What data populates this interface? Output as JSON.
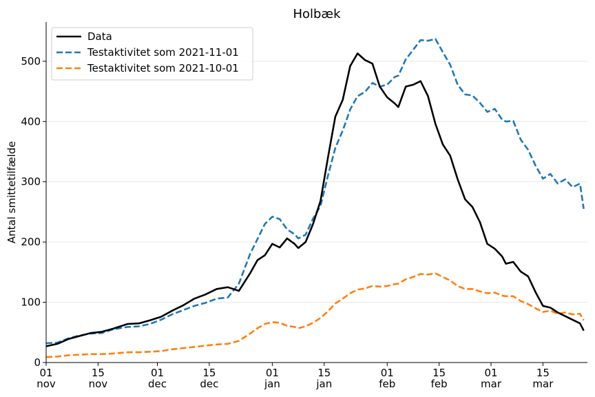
{
  "chart_data": {
    "type": "line",
    "title": "Holbæk",
    "ylabel": "Antal smittetilfælde",
    "xlabel": "",
    "ylim": [
      0,
      565
    ],
    "yticks": [
      0,
      100,
      200,
      300,
      400,
      500
    ],
    "xticks": [
      {
        "date": "2021-11-01",
        "day": "01",
        "month": "nov"
      },
      {
        "date": "2021-11-15",
        "day": "15",
        "month": "nov"
      },
      {
        "date": "2021-12-01",
        "day": "01",
        "month": "dec"
      },
      {
        "date": "2021-12-15",
        "day": "15",
        "month": "dec"
      },
      {
        "date": "2022-01-01",
        "day": "01",
        "month": "jan"
      },
      {
        "date": "2022-01-15",
        "day": "15",
        "month": "jan"
      },
      {
        "date": "2022-02-01",
        "day": "01",
        "month": "feb"
      },
      {
        "date": "2022-02-15",
        "day": "15",
        "month": "feb"
      },
      {
        "date": "2022-03-01",
        "day": "01",
        "month": "mar"
      },
      {
        "date": "2022-03-15",
        "day": "15",
        "month": "mar"
      }
    ],
    "xlim": [
      "2021-11-01",
      "2022-03-27"
    ],
    "grid": "horizontal",
    "legend_position": "top-left",
    "series": [
      {
        "name": "Data",
        "color": "#000000",
        "style": "solid",
        "points": [
          [
            "2021-11-01",
            27
          ],
          [
            "2021-11-04",
            31
          ],
          [
            "2021-11-07",
            39
          ],
          [
            "2021-11-10",
            44
          ],
          [
            "2021-11-13",
            49
          ],
          [
            "2021-11-16",
            51
          ],
          [
            "2021-11-19",
            56
          ],
          [
            "2021-11-23",
            64
          ],
          [
            "2021-11-26",
            65
          ],
          [
            "2021-11-29",
            70
          ],
          [
            "2021-12-02",
            76
          ],
          [
            "2021-12-05",
            86
          ],
          [
            "2021-12-08",
            95
          ],
          [
            "2021-12-11",
            106
          ],
          [
            "2021-12-14",
            113
          ],
          [
            "2021-12-17",
            122
          ],
          [
            "2021-12-20",
            125
          ],
          [
            "2021-12-23",
            119
          ],
          [
            "2021-12-26",
            148
          ],
          [
            "2021-12-28",
            170
          ],
          [
            "2021-12-30",
            178
          ],
          [
            "2022-01-01",
            197
          ],
          [
            "2022-01-03",
            191
          ],
          [
            "2022-01-05",
            206
          ],
          [
            "2022-01-07",
            197
          ],
          [
            "2022-01-08",
            190
          ],
          [
            "2022-01-10",
            200
          ],
          [
            "2022-01-12",
            230
          ],
          [
            "2022-01-14",
            268
          ],
          [
            "2022-01-16",
            340
          ],
          [
            "2022-01-18",
            408
          ],
          [
            "2022-01-20",
            436
          ],
          [
            "2022-01-22",
            492
          ],
          [
            "2022-01-24",
            513
          ],
          [
            "2022-01-26",
            502
          ],
          [
            "2022-01-28",
            496
          ],
          [
            "2022-01-30",
            458
          ],
          [
            "2022-02-01",
            440
          ],
          [
            "2022-02-03",
            430
          ],
          [
            "2022-02-04",
            424
          ],
          [
            "2022-02-06",
            458
          ],
          [
            "2022-02-08",
            461
          ],
          [
            "2022-02-10",
            467
          ],
          [
            "2022-02-12",
            442
          ],
          [
            "2022-02-14",
            396
          ],
          [
            "2022-02-16",
            362
          ],
          [
            "2022-02-18",
            343
          ],
          [
            "2022-02-20",
            304
          ],
          [
            "2022-02-22",
            271
          ],
          [
            "2022-02-24",
            258
          ],
          [
            "2022-02-26",
            233
          ],
          [
            "2022-02-28",
            197
          ],
          [
            "2022-03-02",
            189
          ],
          [
            "2022-03-04",
            176
          ],
          [
            "2022-03-05",
            164
          ],
          [
            "2022-03-07",
            167
          ],
          [
            "2022-03-09",
            151
          ],
          [
            "2022-03-11",
            143
          ],
          [
            "2022-03-13",
            117
          ],
          [
            "2022-03-15",
            94
          ],
          [
            "2022-03-17",
            91
          ],
          [
            "2022-03-19",
            83
          ],
          [
            "2022-03-21",
            77
          ],
          [
            "2022-03-23",
            71
          ],
          [
            "2022-03-25",
            65
          ],
          [
            "2022-03-26",
            53
          ]
        ]
      },
      {
        "name": "Testaktivitet som 2021-11-01",
        "color": "#1f77b4",
        "style": "dashed",
        "points": [
          [
            "2021-11-01",
            32
          ],
          [
            "2021-11-04",
            33
          ],
          [
            "2021-11-07",
            40
          ],
          [
            "2021-11-10",
            45
          ],
          [
            "2021-11-13",
            48
          ],
          [
            "2021-11-16",
            49
          ],
          [
            "2021-11-19",
            55
          ],
          [
            "2021-11-23",
            59
          ],
          [
            "2021-11-26",
            60
          ],
          [
            "2021-11-29",
            64
          ],
          [
            "2021-12-02",
            71
          ],
          [
            "2021-12-05",
            80
          ],
          [
            "2021-12-08",
            87
          ],
          [
            "2021-12-11",
            94
          ],
          [
            "2021-12-14",
            99
          ],
          [
            "2021-12-17",
            106
          ],
          [
            "2021-12-20",
            108
          ],
          [
            "2021-12-23",
            131
          ],
          [
            "2021-12-26",
            180
          ],
          [
            "2021-12-28",
            205
          ],
          [
            "2021-12-30",
            230
          ],
          [
            "2022-01-01",
            242
          ],
          [
            "2022-01-03",
            238
          ],
          [
            "2022-01-05",
            221
          ],
          [
            "2022-01-07",
            213
          ],
          [
            "2022-01-08",
            206
          ],
          [
            "2022-01-10",
            212
          ],
          [
            "2022-01-12",
            239
          ],
          [
            "2022-01-14",
            260
          ],
          [
            "2022-01-16",
            310
          ],
          [
            "2022-01-18",
            356
          ],
          [
            "2022-01-20",
            385
          ],
          [
            "2022-01-22",
            420
          ],
          [
            "2022-01-24",
            442
          ],
          [
            "2022-01-26",
            449
          ],
          [
            "2022-01-28",
            464
          ],
          [
            "2022-01-30",
            458
          ],
          [
            "2022-02-01",
            461
          ],
          [
            "2022-02-03",
            474
          ],
          [
            "2022-02-04",
            476
          ],
          [
            "2022-02-06",
            503
          ],
          [
            "2022-02-08",
            519
          ],
          [
            "2022-02-10",
            535
          ],
          [
            "2022-02-12",
            534
          ],
          [
            "2022-02-14",
            537
          ],
          [
            "2022-02-16",
            515
          ],
          [
            "2022-02-18",
            494
          ],
          [
            "2022-02-20",
            461
          ],
          [
            "2022-02-22",
            445
          ],
          [
            "2022-02-24",
            443
          ],
          [
            "2022-02-26",
            431
          ],
          [
            "2022-02-28",
            416
          ],
          [
            "2022-03-02",
            421
          ],
          [
            "2022-03-04",
            403
          ],
          [
            "2022-03-05",
            400
          ],
          [
            "2022-03-07",
            401
          ],
          [
            "2022-03-09",
            370
          ],
          [
            "2022-03-11",
            353
          ],
          [
            "2022-03-13",
            327
          ],
          [
            "2022-03-15",
            305
          ],
          [
            "2022-03-17",
            313
          ],
          [
            "2022-03-19",
            297
          ],
          [
            "2022-03-21",
            304
          ],
          [
            "2022-03-23",
            291
          ],
          [
            "2022-03-25",
            297
          ],
          [
            "2022-03-26",
            255
          ]
        ]
      },
      {
        "name": "Testaktivitet som 2021-10-01",
        "color": "#ff7f0e",
        "style": "dashed",
        "points": [
          [
            "2021-11-01",
            9
          ],
          [
            "2021-11-04",
            10
          ],
          [
            "2021-11-07",
            12
          ],
          [
            "2021-11-10",
            13
          ],
          [
            "2021-11-13",
            14
          ],
          [
            "2021-11-16",
            14
          ],
          [
            "2021-11-19",
            15
          ],
          [
            "2021-11-23",
            17
          ],
          [
            "2021-11-26",
            17
          ],
          [
            "2021-11-29",
            18
          ],
          [
            "2021-12-02",
            19
          ],
          [
            "2021-12-05",
            22
          ],
          [
            "2021-12-08",
            24
          ],
          [
            "2021-12-11",
            26
          ],
          [
            "2021-12-14",
            28
          ],
          [
            "2021-12-17",
            30
          ],
          [
            "2021-12-20",
            31
          ],
          [
            "2021-12-23",
            36
          ],
          [
            "2021-12-26",
            48
          ],
          [
            "2021-12-28",
            57
          ],
          [
            "2021-12-30",
            64
          ],
          [
            "2022-01-01",
            67
          ],
          [
            "2022-01-03",
            66
          ],
          [
            "2022-01-05",
            61
          ],
          [
            "2022-01-07",
            59
          ],
          [
            "2022-01-08",
            57
          ],
          [
            "2022-01-10",
            60
          ],
          [
            "2022-01-12",
            66
          ],
          [
            "2022-01-14",
            74
          ],
          [
            "2022-01-16",
            85
          ],
          [
            "2022-01-18",
            98
          ],
          [
            "2022-01-20",
            106
          ],
          [
            "2022-01-22",
            115
          ],
          [
            "2022-01-24",
            121
          ],
          [
            "2022-01-26",
            123
          ],
          [
            "2022-01-28",
            127
          ],
          [
            "2022-01-30",
            126
          ],
          [
            "2022-02-01",
            127
          ],
          [
            "2022-02-03",
            130
          ],
          [
            "2022-02-04",
            131
          ],
          [
            "2022-02-06",
            138
          ],
          [
            "2022-02-08",
            142
          ],
          [
            "2022-02-10",
            147
          ],
          [
            "2022-02-12",
            146
          ],
          [
            "2022-02-14",
            148
          ],
          [
            "2022-02-16",
            142
          ],
          [
            "2022-02-18",
            136
          ],
          [
            "2022-02-20",
            127
          ],
          [
            "2022-02-22",
            122
          ],
          [
            "2022-02-24",
            122
          ],
          [
            "2022-02-26",
            118
          ],
          [
            "2022-02-28",
            115
          ],
          [
            "2022-03-02",
            116
          ],
          [
            "2022-03-04",
            111
          ],
          [
            "2022-03-05",
            110
          ],
          [
            "2022-03-07",
            110
          ],
          [
            "2022-03-09",
            102
          ],
          [
            "2022-03-11",
            97
          ],
          [
            "2022-03-13",
            90
          ],
          [
            "2022-03-15",
            84
          ],
          [
            "2022-03-17",
            86
          ],
          [
            "2022-03-19",
            81
          ],
          [
            "2022-03-21",
            83
          ],
          [
            "2022-03-23",
            80
          ],
          [
            "2022-03-25",
            81
          ],
          [
            "2022-03-26",
            70
          ]
        ]
      }
    ]
  }
}
